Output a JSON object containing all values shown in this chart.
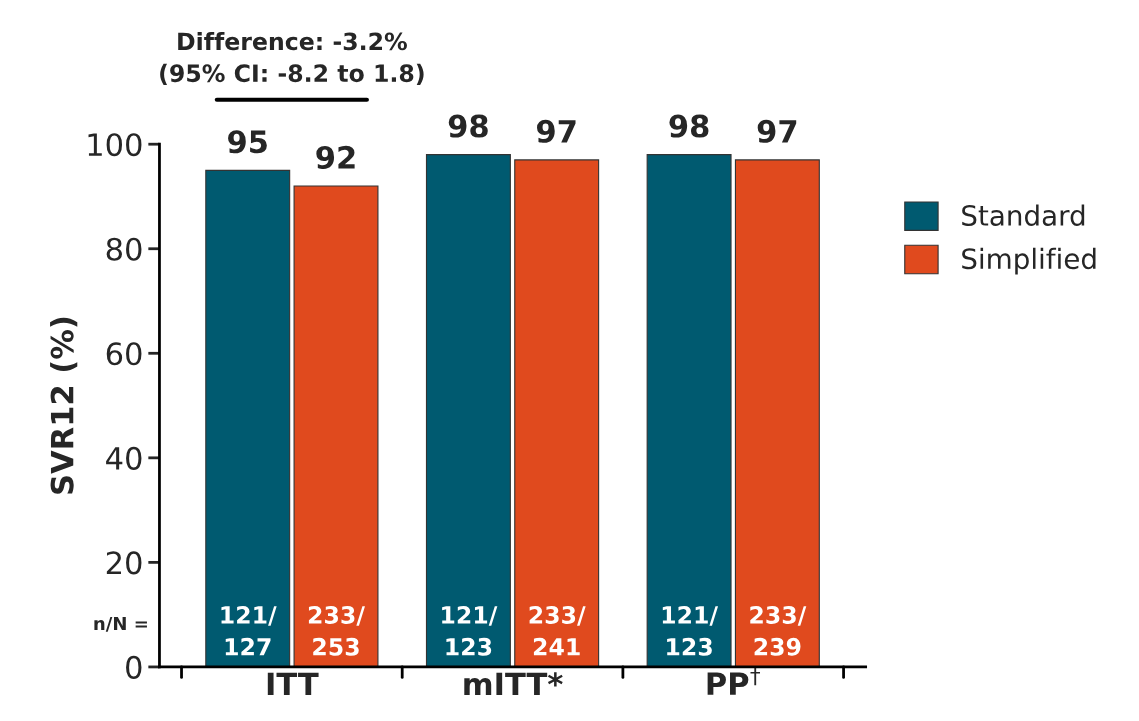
{
  "chart_data": {
    "type": "bar",
    "ylabel": "SVR12 (%)",
    "categories": [
      "ITT",
      "mITT*",
      "PP$^{†}$"
    ],
    "series": [
      {
        "name": "Standard",
        "color": "#005a70",
        "values": [
          95,
          98,
          98
        ]
      },
      {
        "name": "Simplified",
        "color": "#e04a1e",
        "values": [
          92,
          97,
          97
        ]
      }
    ],
    "ylim": [
      0,
      100
    ],
    "yticks": [
      0,
      20,
      40,
      60,
      80,
      100
    ],
    "data_labels": true,
    "legend": "right",
    "grid": false,
    "annotations": [
      "Difference: -3.2%\n(95% CI: -8.2 to 1.8)",
      "n/N =",
      "121/\n127",
      "233/\n253",
      "121/\n123",
      "233/\n241",
      "121/\n123",
      "233/\n239"
    ]
  }
}
